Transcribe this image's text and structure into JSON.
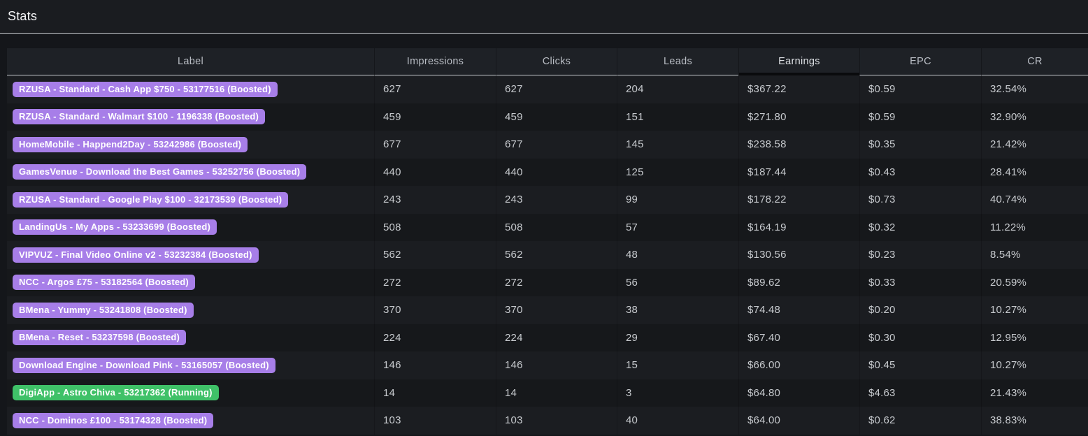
{
  "title": "Stats",
  "badge_colors": {
    "boosted": "#a77ee8",
    "running": "#3fc168"
  },
  "table": {
    "columns": [
      {
        "label": "Label",
        "sorted": false
      },
      {
        "label": "Impressions",
        "sorted": false
      },
      {
        "label": "Clicks",
        "sorted": false
      },
      {
        "label": "Leads",
        "sorted": false
      },
      {
        "label": "Earnings",
        "sorted": true
      },
      {
        "label": "EPC",
        "sorted": false
      },
      {
        "label": "CR",
        "sorted": false
      }
    ],
    "rows": [
      {
        "label": "RZUSA - Standard - Cash App $750 - 53177516 (Boosted)",
        "status": "Boosted",
        "impressions": "627",
        "clicks": "627",
        "leads": "204",
        "earnings": "$367.22",
        "epc": "$0.59",
        "cr": "32.54%"
      },
      {
        "label": "RZUSA - Standard - Walmart $100 - 1196338 (Boosted)",
        "status": "Boosted",
        "impressions": "459",
        "clicks": "459",
        "leads": "151",
        "earnings": "$271.80",
        "epc": "$0.59",
        "cr": "32.90%"
      },
      {
        "label": "HomeMobile - Happend2Day - 53242986 (Boosted)",
        "status": "Boosted",
        "impressions": "677",
        "clicks": "677",
        "leads": "145",
        "earnings": "$238.58",
        "epc": "$0.35",
        "cr": "21.42%"
      },
      {
        "label": "GamesVenue - Download the Best Games - 53252756 (Boosted)",
        "status": "Boosted",
        "impressions": "440",
        "clicks": "440",
        "leads": "125",
        "earnings": "$187.44",
        "epc": "$0.43",
        "cr": "28.41%"
      },
      {
        "label": "RZUSA - Standard - Google Play $100 - 32173539 (Boosted)",
        "status": "Boosted",
        "impressions": "243",
        "clicks": "243",
        "leads": "99",
        "earnings": "$178.22",
        "epc": "$0.73",
        "cr": "40.74%"
      },
      {
        "label": "LandingUs - My Apps - 53233699 (Boosted)",
        "status": "Boosted",
        "impressions": "508",
        "clicks": "508",
        "leads": "57",
        "earnings": "$164.19",
        "epc": "$0.32",
        "cr": "11.22%"
      },
      {
        "label": "VIPVUZ - Final Video Online v2 - 53232384 (Boosted)",
        "status": "Boosted",
        "impressions": "562",
        "clicks": "562",
        "leads": "48",
        "earnings": "$130.56",
        "epc": "$0.23",
        "cr": "8.54%"
      },
      {
        "label": "NCC - Argos £75 - 53182564 (Boosted)",
        "status": "Boosted",
        "impressions": "272",
        "clicks": "272",
        "leads": "56",
        "earnings": "$89.62",
        "epc": "$0.33",
        "cr": "20.59%"
      },
      {
        "label": "BMena - Yummy - 53241808 (Boosted)",
        "status": "Boosted",
        "impressions": "370",
        "clicks": "370",
        "leads": "38",
        "earnings": "$74.48",
        "epc": "$0.20",
        "cr": "10.27%"
      },
      {
        "label": "BMena - Reset - 53237598 (Boosted)",
        "status": "Boosted",
        "impressions": "224",
        "clicks": "224",
        "leads": "29",
        "earnings": "$67.40",
        "epc": "$0.30",
        "cr": "12.95%"
      },
      {
        "label": "Download Engine - Download Pink - 53165057 (Boosted)",
        "status": "Boosted",
        "impressions": "146",
        "clicks": "146",
        "leads": "15",
        "earnings": "$66.00",
        "epc": "$0.45",
        "cr": "10.27%"
      },
      {
        "label": "DigiApp - Astro Chiva - 53217362 (Running)",
        "status": "Running",
        "impressions": "14",
        "clicks": "14",
        "leads": "3",
        "earnings": "$64.80",
        "epc": "$4.63",
        "cr": "21.43%"
      },
      {
        "label": "NCC - Dominos £100 - 53174328 (Boosted)",
        "status": "Boosted",
        "impressions": "103",
        "clicks": "103",
        "leads": "40",
        "earnings": "$64.00",
        "epc": "$0.62",
        "cr": "38.83%"
      }
    ]
  }
}
